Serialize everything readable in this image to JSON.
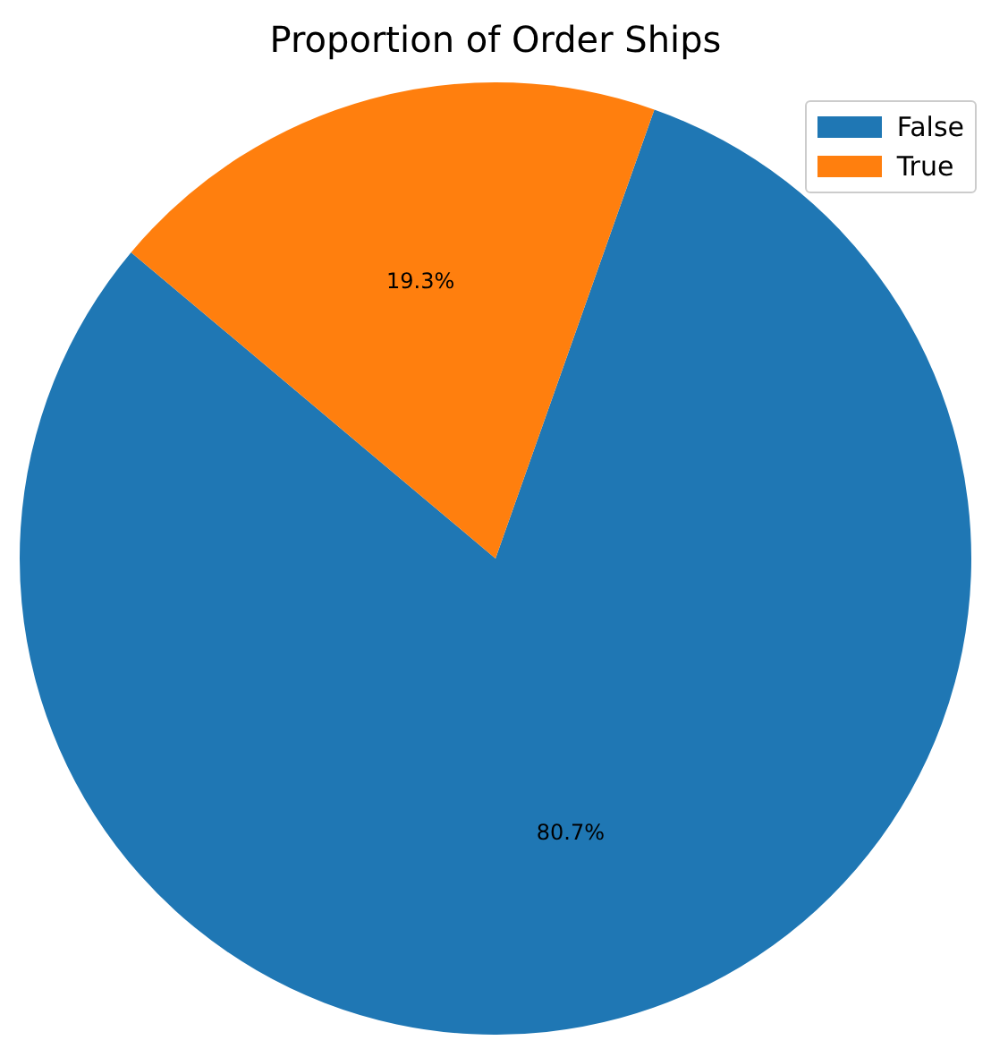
{
  "chart_data": {
    "type": "pie",
    "title": "Proportion of Order Ships",
    "categories": [
      "False",
      "True"
    ],
    "values": [
      80.7,
      19.3
    ],
    "colors": [
      "#1f77b4",
      "#ff7f0e"
    ],
    "value_labels": [
      "80.7%",
      "19.3%"
    ],
    "legend": "top right"
  }
}
